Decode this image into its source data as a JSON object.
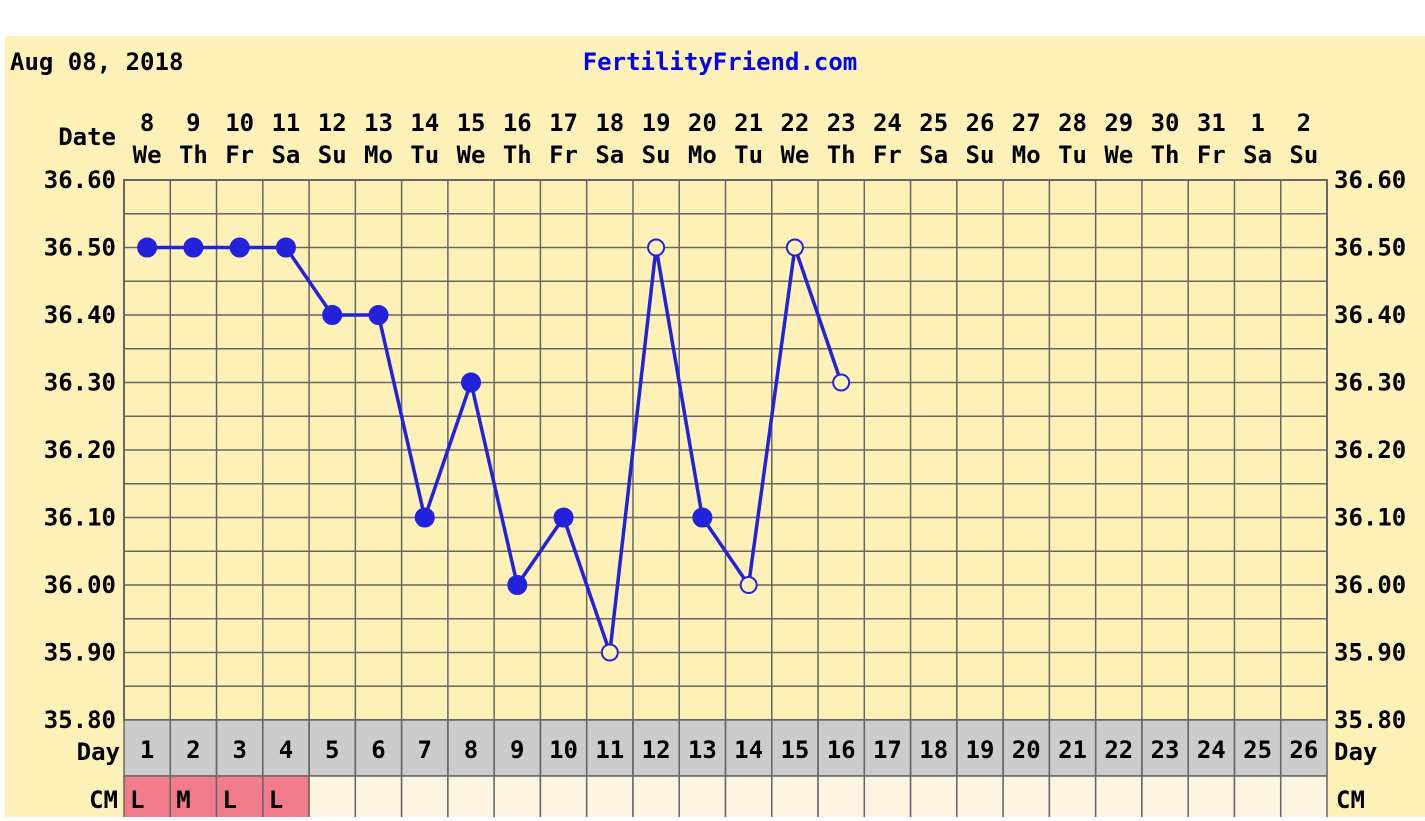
{
  "header": {
    "date": "Aug 08, 2018",
    "site": "FertilityFriend.com"
  },
  "labels": {
    "date_row": "Date",
    "day_row": "Day",
    "cm_row": "CM"
  },
  "colors": {
    "background": "#fdf1b8",
    "line": "#2222dd",
    "text": "#000000",
    "site_text": "#0000ee",
    "grid": "#666666",
    "day_row_bg": "#cccccc",
    "cm_cell_bg": "#fdf4e2",
    "cm_marked_bg": "#f27c8a"
  },
  "chart_data": {
    "type": "line",
    "ylim": [
      35.8,
      36.6
    ],
    "y_ticks": [
      "36.60",
      "36.50",
      "36.40",
      "36.30",
      "36.20",
      "36.10",
      "36.00",
      "35.90",
      "35.80"
    ],
    "dates": [
      "8",
      "9",
      "10",
      "11",
      "12",
      "13",
      "14",
      "15",
      "16",
      "17",
      "18",
      "19",
      "20",
      "21",
      "22",
      "23",
      "24",
      "25",
      "26",
      "27",
      "28",
      "29",
      "30",
      "31",
      "1",
      "2"
    ],
    "weekdays": [
      "We",
      "Th",
      "Fr",
      "Sa",
      "Su",
      "Mo",
      "Tu",
      "We",
      "Th",
      "Fr",
      "Sa",
      "Su",
      "Mo",
      "Tu",
      "We",
      "Th",
      "Fr",
      "Sa",
      "Su",
      "Mo",
      "Tu",
      "We",
      "Th",
      "Fr",
      "Sa",
      "Su"
    ],
    "days": [
      "1",
      "2",
      "3",
      "4",
      "5",
      "6",
      "7",
      "8",
      "9",
      "10",
      "11",
      "12",
      "13",
      "14",
      "15",
      "16",
      "17",
      "18",
      "19",
      "20",
      "21",
      "22",
      "23",
      "24",
      "25",
      "26"
    ],
    "cm": [
      "L",
      "M",
      "L",
      "L",
      "",
      "",
      "",
      "",
      "",
      "",
      "",
      "",
      "",
      "",
      "",
      "",
      "",
      "",
      "",
      "",
      "",
      "",
      "",
      "",
      "",
      ""
    ],
    "series": [
      {
        "temperatures": [
          36.5,
          36.5,
          36.5,
          36.5,
          36.4,
          36.4,
          36.1,
          36.3,
          36.0,
          36.1,
          35.9,
          36.5,
          36.1,
          36.0,
          36.5,
          36.3
        ],
        "markers": [
          "filled",
          "filled",
          "filled",
          "filled",
          "filled",
          "filled",
          "filled",
          "filled",
          "filled",
          "filled",
          "open",
          "open",
          "filled",
          "open",
          "open",
          "open"
        ]
      }
    ]
  }
}
